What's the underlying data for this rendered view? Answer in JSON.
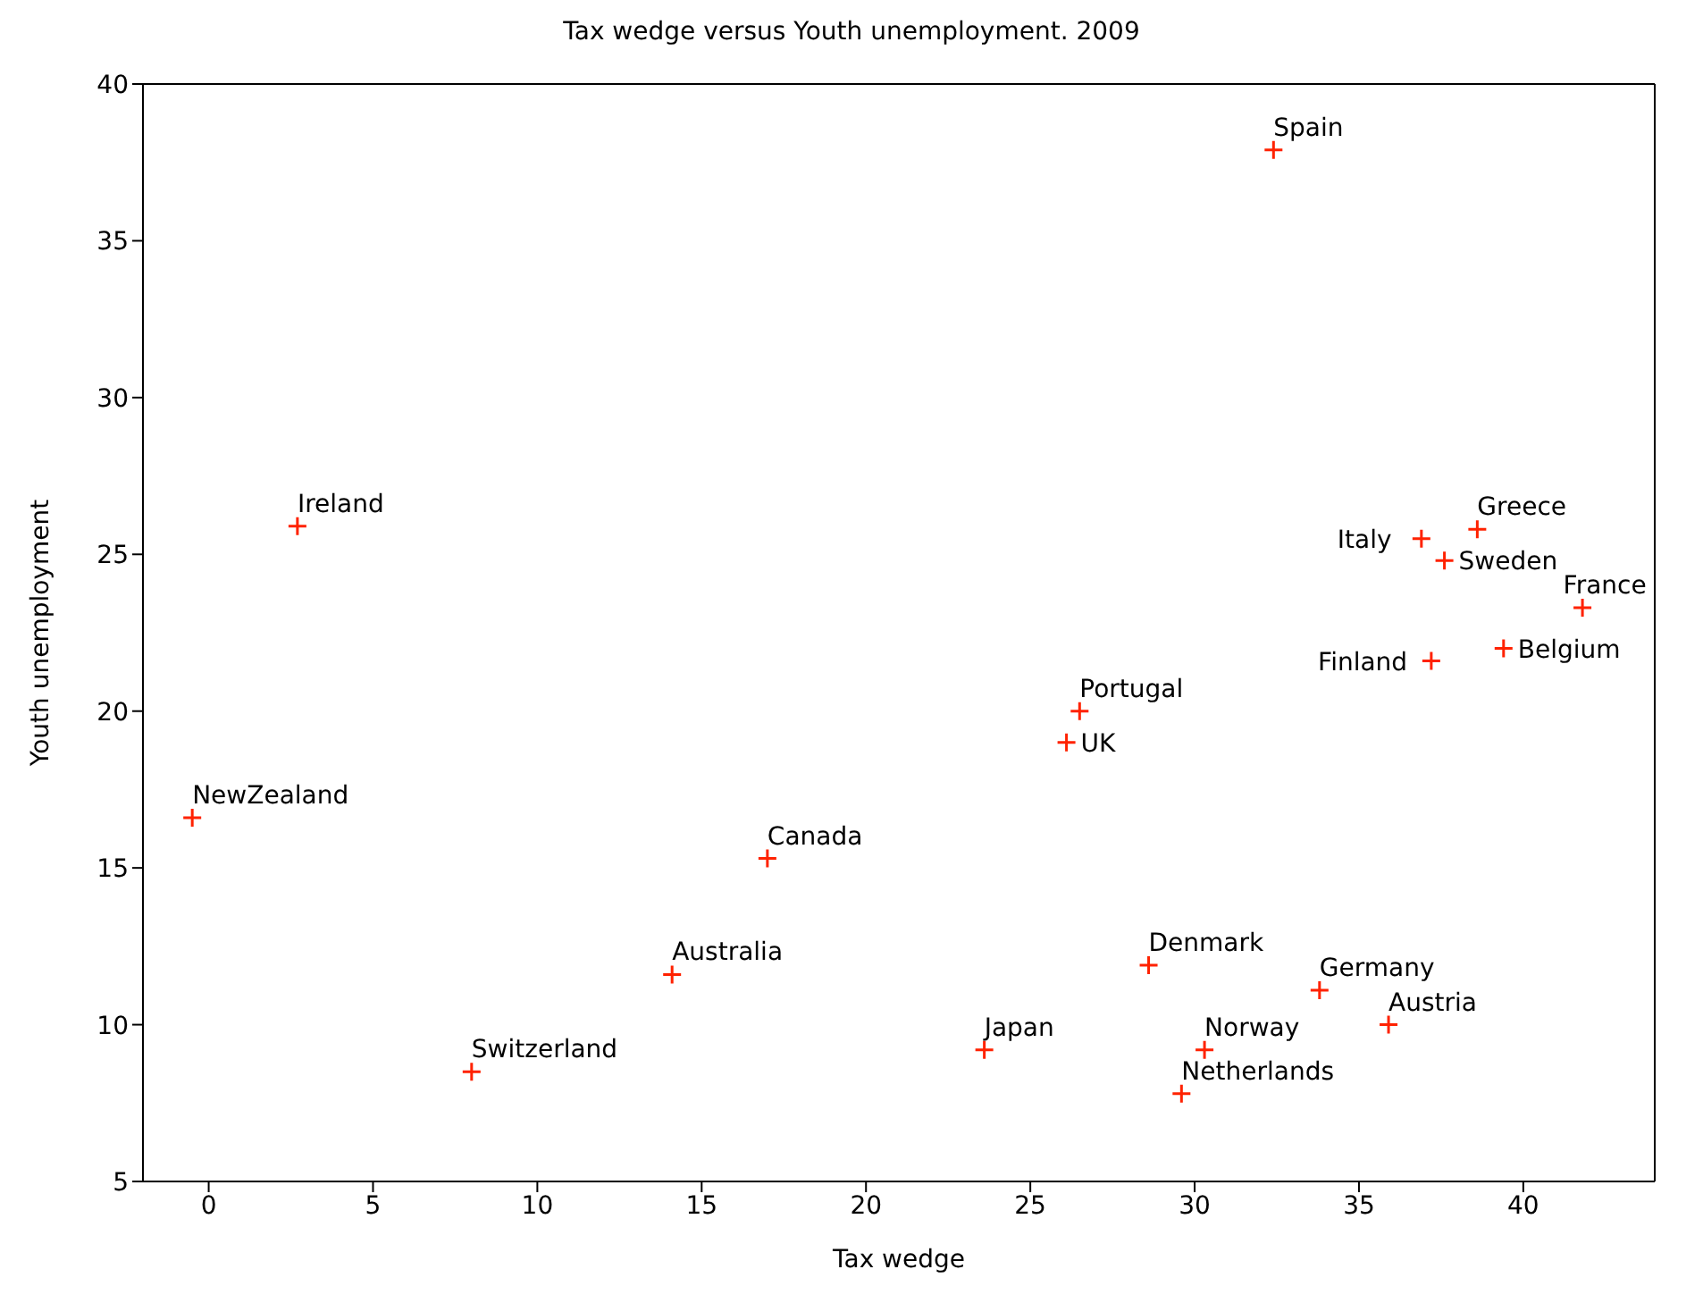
{
  "chart_data": {
    "type": "scatter",
    "title": "Tax wedge versus Youth unemployment. 2009",
    "xlabel": "Tax wedge",
    "ylabel": "Youth unemployment",
    "x": [
      32.4,
      2.7,
      -0.5,
      17.0,
      14.1,
      8.0,
      23.6,
      26.5,
      26.1,
      28.6,
      30.3,
      29.6,
      33.8,
      35.9,
      36.9,
      38.6,
      37.6,
      41.8,
      39.4,
      37.2
    ],
    "series": [
      {
        "color": "#ff2200",
        "values": [
          37.9,
          25.9,
          16.6,
          15.3,
          11.6,
          8.5,
          9.2,
          20.0,
          19.0,
          11.9,
          9.2,
          7.8,
          11.1,
          10.0,
          25.5,
          25.8,
          24.8,
          23.3,
          22.0,
          21.6
        ]
      }
    ],
    "annotations": [
      {
        "text": "Spain",
        "x": 32.4,
        "y": 37.9
      },
      {
        "text": "Ireland",
        "x": 2.7,
        "y": 25.9
      },
      {
        "text": "NewZealand",
        "x": -0.5,
        "y": 16.6
      },
      {
        "text": "Canada",
        "x": 17.0,
        "y": 15.3
      },
      {
        "text": "Australia",
        "x": 14.1,
        "y": 11.6
      },
      {
        "text": "Switzerland",
        "x": 8.0,
        "y": 8.5
      },
      {
        "text": "Japan",
        "x": 23.6,
        "y": 9.2
      },
      {
        "text": "Portugal",
        "x": 26.5,
        "y": 20.0
      },
      {
        "text": "UK",
        "x": 26.1,
        "y": 19.0
      },
      {
        "text": "Denmark",
        "x": 28.6,
        "y": 11.9
      },
      {
        "text": "Norway",
        "x": 30.3,
        "y": 9.2
      },
      {
        "text": "Netherlands",
        "x": 29.6,
        "y": 7.8
      },
      {
        "text": "Germany",
        "x": 33.8,
        "y": 11.1
      },
      {
        "text": "Austria",
        "x": 35.9,
        "y": 10.0
      },
      {
        "text": "Italy",
        "x": 36.9,
        "y": 25.5
      },
      {
        "text": "Greece",
        "x": 38.6,
        "y": 25.8
      },
      {
        "text": "Sweden",
        "x": 37.6,
        "y": 24.8
      },
      {
        "text": "France",
        "x": 41.8,
        "y": 23.3
      },
      {
        "text": "Belgium",
        "x": 39.4,
        "y": 22.0
      },
      {
        "text": "Finland",
        "x": 37.2,
        "y": 21.6
      }
    ],
    "xlim": [
      -2,
      44
    ],
    "xticks": [
      0,
      5,
      10,
      15,
      20,
      25,
      30,
      35,
      40
    ],
    "ylim": [
      5,
      40
    ],
    "yticks": [
      5,
      10,
      15,
      20,
      25,
      30,
      35,
      40
    ],
    "marker": "cross",
    "grid": false,
    "legend": false
  }
}
